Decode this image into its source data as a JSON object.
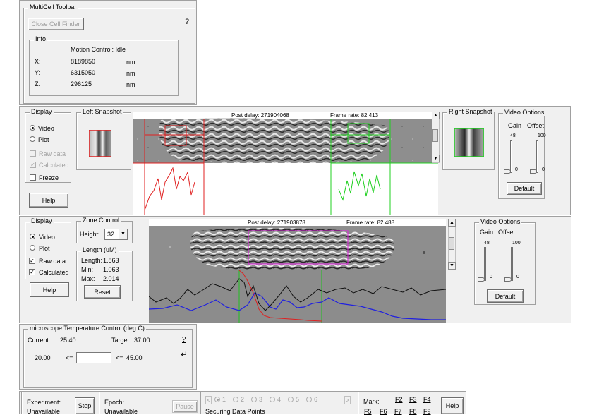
{
  "toolbar": {
    "title": "MultiCell Toolbar",
    "close_cell_finder": "Close Cell Finder",
    "help_q": "?",
    "info": {
      "title": "Info",
      "motion_control": "Motion Control: Idle",
      "rows": [
        {
          "axis": "X:",
          "value": "8189850",
          "unit": "nm"
        },
        {
          "axis": "Y:",
          "value": "6315050",
          "unit": "nm"
        },
        {
          "axis": "Z:",
          "value": "296125",
          "unit": "nm"
        }
      ]
    }
  },
  "panel1": {
    "display": {
      "title": "Display",
      "video": "Video",
      "plot": "Plot",
      "raw_data": "Raw data",
      "calculated": "Calculated",
      "freeze": "Freeze",
      "help": "Help"
    },
    "left_snapshot": "Left Snapshot",
    "right_snapshot": "Right Snapshot",
    "post_delay_label": "Post delay:",
    "post_delay_value": "271904068",
    "frame_rate_label": "Frame rate:",
    "frame_rate_value": "82.413",
    "video_options": {
      "title": "Video Options",
      "gain": "Gain",
      "offset": "Offset",
      "gain_max": "48",
      "offset_max": "100",
      "gain_min": "0",
      "offset_min": "0",
      "default": "Default"
    }
  },
  "panel2": {
    "display": {
      "title": "Display",
      "video": "Video",
      "plot": "Plot",
      "raw_data": "Raw data",
      "calculated": "Calculated",
      "help": "Help"
    },
    "zone_control": {
      "title": "Zone Control",
      "height_label": "Height:",
      "height_value": "32"
    },
    "length": {
      "title": "Length (uM)",
      "length_label": "Length:",
      "length_value": "1.863",
      "min_label": "Min:",
      "min_value": "1.063",
      "max_label": "Max:",
      "max_value": "2.014",
      "reset": "Reset"
    },
    "post_delay_label": "Post delay:",
    "post_delay_value": "271903878",
    "frame_rate_label": "Frame rate:",
    "frame_rate_value": "82.488",
    "video_options": {
      "title": "Video Options",
      "gain": "Gain",
      "offset": "Offset",
      "gain_max": "48",
      "offset_max": "100",
      "gain_min": "0",
      "offset_min": "0",
      "default": "Default"
    }
  },
  "temperature": {
    "title": "microscope Temperature Control (deg C)",
    "current_label": "Current:",
    "current_value": "25.40",
    "target_label": "Target:",
    "target_value": "37.00",
    "help_q": "?",
    "min_value": "20.00",
    "lte1": "<=",
    "lte2": "<=",
    "max_value": "45.00",
    "input_value": ""
  },
  "bottom": {
    "experiment_label": "Experiment:",
    "experiment_status": "Unavailable",
    "stop": "Stop",
    "epoch_label": "Epoch:",
    "epoch_status": "Unavailable",
    "pause": "Pause",
    "epochs": [
      "1",
      "2",
      "3",
      "4",
      "5",
      "6"
    ],
    "status": "Securing Data Points",
    "mark_label": "Mark:",
    "fkeys_row1": [
      "F2",
      "F3",
      "F4"
    ],
    "fkeys_row2": [
      "F5",
      "F6",
      "F7",
      "F8",
      "F9"
    ],
    "help": "Help"
  }
}
